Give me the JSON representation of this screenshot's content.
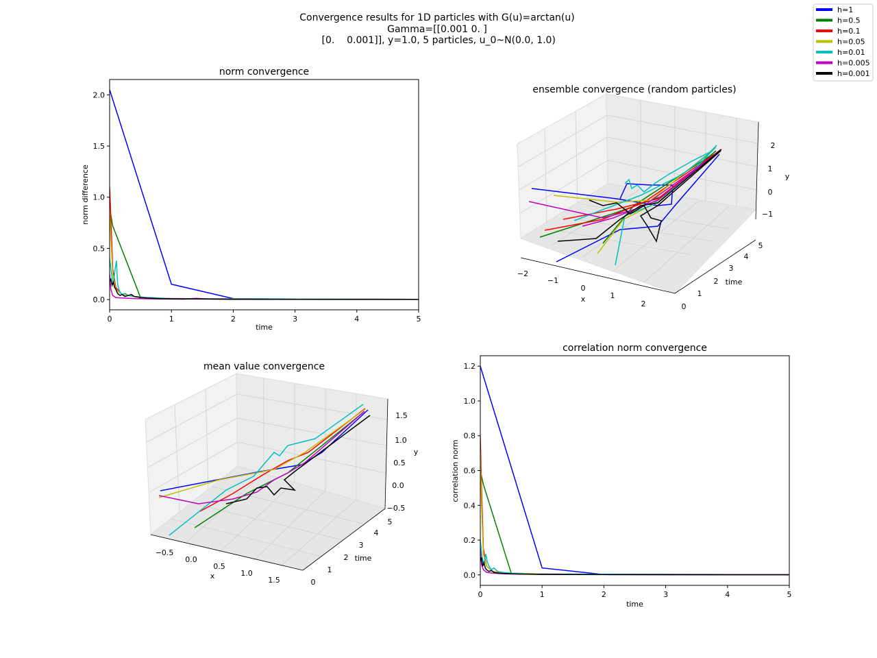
{
  "figure": {
    "title_lines": [
      "Convergence results for 1D particles with G(u)=arctan(u)",
      "Gamma=[[0.001 0.   ]",
      " [0.    0.001]], y=1.0, 5 particles, u_0~N(0.0, 1.0)"
    ]
  },
  "legend": {
    "placement": "top-right",
    "entries": [
      {
        "label": "h=1",
        "color": "#0000ff"
      },
      {
        "label": "h=0.5",
        "color": "#008000"
      },
      {
        "label": "h=0.1",
        "color": "#ff0000"
      },
      {
        "label": "h=0.05",
        "color": "#bfbf00"
      },
      {
        "label": "h=0.01",
        "color": "#00bfbf"
      },
      {
        "label": "h=0.005",
        "color": "#bf00bf"
      },
      {
        "label": "h=0.001",
        "color": "#000000"
      }
    ]
  },
  "chart_data": [
    {
      "type": "line",
      "title": "norm convergence",
      "xlabel": "time",
      "ylabel": "norm difference",
      "xlim": [
        0,
        5
      ],
      "ylim": [
        -0.1,
        2.15
      ],
      "xticks": [
        "0",
        "1",
        "2",
        "3",
        "4",
        "5"
      ],
      "yticks": [
        "0.0",
        "0.5",
        "1.0",
        "1.5",
        "2.0"
      ],
      "series": [
        {
          "name": "h=1",
          "color": "#0000ff",
          "x": [
            0,
            1,
            2,
            3,
            4,
            5
          ],
          "y": [
            2.05,
            0.15,
            0.01,
            0.005,
            0.003,
            0.002
          ]
        },
        {
          "name": "h=0.5",
          "color": "#008000",
          "x": [
            0,
            0.05,
            0.5,
            1,
            2,
            5
          ],
          "y": [
            0.9,
            0.72,
            0.02,
            0.01,
            0.005,
            0.002
          ]
        },
        {
          "name": "h=0.1",
          "color": "#ff0000",
          "x": [
            0,
            0.02,
            0.05,
            0.1,
            0.2,
            0.4,
            0.8,
            1.5,
            5
          ],
          "y": [
            1.1,
            0.8,
            0.3,
            0.12,
            0.05,
            0.03,
            0.01,
            0.006,
            0.002
          ]
        },
        {
          "name": "h=0.05",
          "color": "#bfbf00",
          "x": [
            0,
            0.02,
            0.05,
            0.1,
            0.2,
            0.5,
            1,
            5
          ],
          "y": [
            0.9,
            0.6,
            0.25,
            0.1,
            0.05,
            0.02,
            0.01,
            0.002
          ]
        },
        {
          "name": "h=0.01",
          "color": "#00bfbf",
          "x": [
            0,
            0.03,
            0.06,
            0.09,
            0.11,
            0.13,
            0.16,
            0.2,
            0.25,
            0.3,
            0.4,
            0.6,
            0.8,
            1,
            5
          ],
          "y": [
            0.4,
            0.25,
            0.15,
            0.3,
            0.38,
            0.15,
            0.08,
            0.05,
            0.06,
            0.04,
            0.03,
            0.02,
            0.015,
            0.008,
            0.002
          ]
        },
        {
          "name": "h=0.005",
          "color": "#bf00bf",
          "x": [
            0,
            0.02,
            0.05,
            0.1,
            0.2,
            0.4,
            0.8,
            1.2,
            1.4,
            1.6,
            2,
            3,
            5
          ],
          "y": [
            0.25,
            0.1,
            0.04,
            0.02,
            0.015,
            0.01,
            0.005,
            0.004,
            0.012,
            0.005,
            0.003,
            0.002,
            0.002
          ]
        },
        {
          "name": "h=0.001",
          "color": "#000000",
          "x": [
            0,
            0.02,
            0.04,
            0.06,
            0.08,
            0.1,
            0.13,
            0.17,
            0.2,
            0.25,
            0.3,
            0.35,
            0.4,
            0.5,
            0.6,
            0.8,
            1,
            1.5,
            2,
            3,
            5
          ],
          "y": [
            0.18,
            0.2,
            0.14,
            0.17,
            0.12,
            0.1,
            0.06,
            0.04,
            0.05,
            0.03,
            0.04,
            0.05,
            0.03,
            0.02,
            0.015,
            0.01,
            0.008,
            0.005,
            0.003,
            0.002,
            0.001
          ]
        }
      ]
    },
    {
      "type": "line",
      "title": "ensemble convergence (random particles)",
      "projection": "3d",
      "xlabel": "x",
      "ylabel": "time",
      "zlabel": "y",
      "xticks": [
        "−2",
        "−1",
        "0",
        "1",
        "2"
      ],
      "yticks": [
        "0",
        "1",
        "2",
        "3",
        "4",
        "5"
      ],
      "zticks": [
        "−1",
        "0",
        "1",
        "2"
      ],
      "note_series": "5 particle trajectories per step size, colors as legend"
    },
    {
      "type": "line",
      "title": "mean value convergence",
      "projection": "3d",
      "xlabel": "x",
      "ylabel": "time",
      "zlabel": "y",
      "xticks": [
        "−0.5",
        "0.0",
        "0.5",
        "1.0",
        "1.5"
      ],
      "yticks": [
        "0",
        "1",
        "2",
        "3",
        "4",
        "5"
      ],
      "zticks": [
        "−0.5",
        "0.0",
        "0.5",
        "1.0",
        "1.5"
      ]
    },
    {
      "type": "line",
      "title": "correlation norm convergence",
      "xlabel": "time",
      "ylabel": "correlation norm",
      "xlim": [
        0,
        5
      ],
      "ylim": [
        -0.06,
        1.26
      ],
      "xticks": [
        "0",
        "1",
        "2",
        "3",
        "4",
        "5"
      ],
      "yticks": [
        "0.0",
        "0.2",
        "0.4",
        "0.6",
        "0.8",
        "1.0",
        "1.2"
      ],
      "series": [
        {
          "name": "h=1",
          "color": "#0000ff",
          "x": [
            0,
            1,
            2,
            3,
            4,
            5
          ],
          "y": [
            1.2,
            0.04,
            0.002,
            0.001,
            0.001,
            0.001
          ]
        },
        {
          "name": "h=0.5",
          "color": "#008000",
          "x": [
            0,
            0.05,
            0.5,
            1,
            2,
            5
          ],
          "y": [
            0.6,
            0.52,
            0.01,
            0.005,
            0.002,
            0.001
          ]
        },
        {
          "name": "h=0.1",
          "color": "#ff0000",
          "x": [
            0,
            0.02,
            0.05,
            0.1,
            0.2,
            0.4,
            0.7,
            1,
            5
          ],
          "y": [
            0.8,
            0.5,
            0.15,
            0.05,
            0.02,
            0.01,
            0.006,
            0.003,
            0.001
          ]
        },
        {
          "name": "h=0.05",
          "color": "#bfbf00",
          "x": [
            0,
            0.02,
            0.05,
            0.1,
            0.2,
            0.5,
            1,
            5
          ],
          "y": [
            0.7,
            0.4,
            0.12,
            0.05,
            0.02,
            0.01,
            0.005,
            0.001
          ]
        },
        {
          "name": "h=0.01",
          "color": "#00bfbf",
          "x": [
            0,
            0.03,
            0.06,
            0.09,
            0.11,
            0.14,
            0.18,
            0.22,
            0.28,
            0.35,
            0.5,
            0.8,
            5
          ],
          "y": [
            0.2,
            0.1,
            0.06,
            0.12,
            0.08,
            0.05,
            0.03,
            0.04,
            0.02,
            0.015,
            0.01,
            0.005,
            0.001
          ]
        },
        {
          "name": "h=0.005",
          "color": "#bf00bf",
          "x": [
            0,
            0.02,
            0.05,
            0.1,
            0.2,
            0.4,
            0.8,
            1.5,
            5
          ],
          "y": [
            0.15,
            0.06,
            0.03,
            0.015,
            0.01,
            0.006,
            0.004,
            0.002,
            0.001
          ]
        },
        {
          "name": "h=0.001",
          "color": "#000000",
          "x": [
            0,
            0.02,
            0.04,
            0.06,
            0.08,
            0.1,
            0.14,
            0.18,
            0.22,
            0.3,
            0.4,
            0.6,
            1,
            2,
            5
          ],
          "y": [
            0.08,
            0.1,
            0.05,
            0.07,
            0.04,
            0.03,
            0.02,
            0.025,
            0.015,
            0.01,
            0.008,
            0.005,
            0.003,
            0.002,
            0.001
          ]
        }
      ]
    }
  ]
}
